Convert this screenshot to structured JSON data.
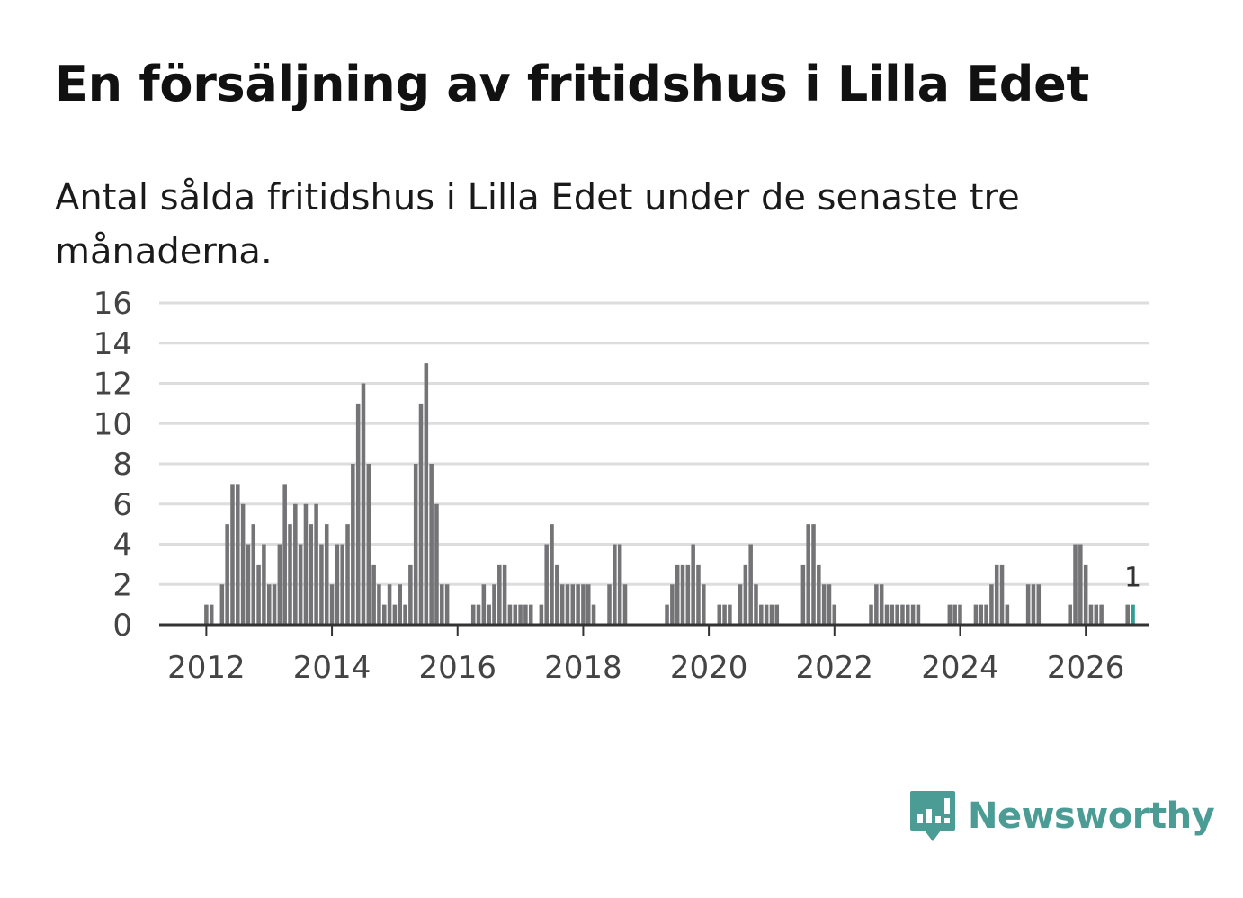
{
  "colors": {
    "bar": "#747477",
    "highlight": "#2e9e97",
    "grid": "#dddddd",
    "axis": "#333333",
    "brand": "#4a9c95"
  },
  "brand": {
    "name": "Newsworthy",
    "icon": "bar-chart-speech-bubble-icon"
  },
  "chart_data": {
    "type": "bar",
    "title": "En försäljning av fritidshus i Lilla Edet",
    "subtitle": "Antal sålda fritidshus i Lilla Edet under de senaste tre månaderna.",
    "xlabel": "",
    "ylabel": "",
    "ylim": [
      0,
      16
    ],
    "y_ticks": [
      0,
      2,
      4,
      6,
      8,
      10,
      12,
      14,
      16
    ],
    "x_ticks": [
      "2012",
      "2014",
      "2016",
      "2018",
      "2020",
      "2022",
      "2024",
      "2026"
    ],
    "x_start_year": 2011.25,
    "interval_months": 1,
    "values": [
      0,
      0,
      0,
      0,
      0,
      0,
      0,
      0,
      0,
      1,
      1,
      0,
      2,
      5,
      7,
      7,
      6,
      4,
      5,
      3,
      4,
      2,
      2,
      4,
      7,
      5,
      6,
      4,
      6,
      5,
      6,
      4,
      5,
      2,
      4,
      4,
      5,
      8,
      11,
      12,
      8,
      3,
      2,
      1,
      2,
      1,
      2,
      1,
      3,
      8,
      11,
      13,
      8,
      6,
      2,
      2,
      0,
      0,
      0,
      0,
      1,
      1,
      2,
      1,
      2,
      3,
      3,
      1,
      1,
      1,
      1,
      1,
      0,
      1,
      4,
      5,
      3,
      2,
      2,
      2,
      2,
      2,
      2,
      1,
      0,
      0,
      2,
      4,
      4,
      2,
      0,
      0,
      0,
      0,
      0,
      0,
      0,
      1,
      2,
      3,
      3,
      3,
      4,
      3,
      2,
      0,
      0,
      1,
      1,
      1,
      0,
      2,
      3,
      4,
      2,
      1,
      1,
      1,
      1,
      0,
      0,
      0,
      0,
      3,
      5,
      5,
      3,
      2,
      2,
      1,
      0,
      0,
      0,
      0,
      0,
      0,
      1,
      2,
      2,
      1,
      1,
      1,
      1,
      1,
      1,
      1,
      0,
      0,
      0,
      0,
      0,
      1,
      1,
      1,
      0,
      0,
      1,
      1,
      1,
      2,
      3,
      3,
      1,
      0,
      0,
      0,
      2,
      2,
      2,
      0,
      0,
      0,
      0,
      0,
      1,
      4,
      4,
      3,
      1,
      1,
      1,
      0,
      0,
      0,
      0,
      1,
      1
    ],
    "highlight_last": true,
    "annotations": [
      {
        "label": "1",
        "target": "last"
      }
    ]
  }
}
